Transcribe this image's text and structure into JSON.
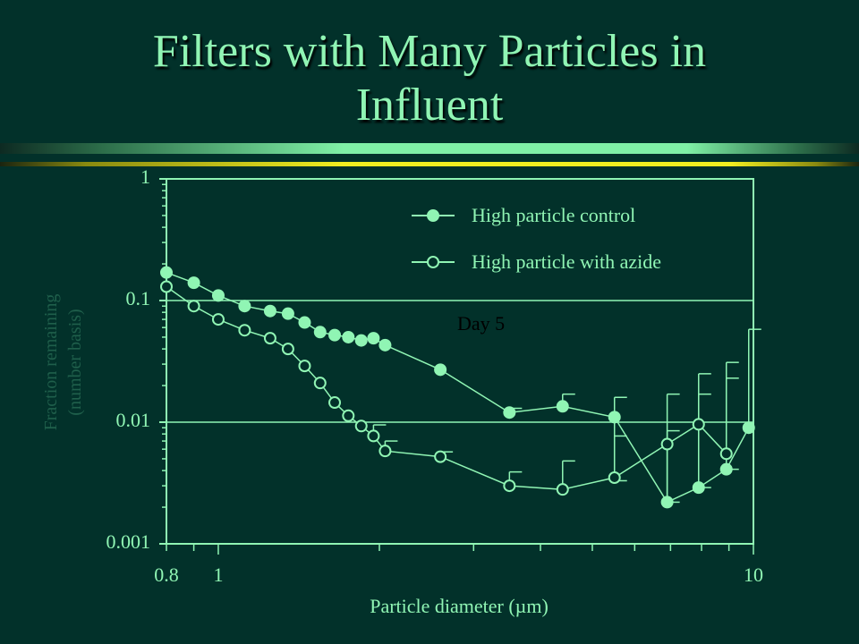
{
  "slide": {
    "title_line1": "Filters with Many Particles in",
    "title_line2": "Influent"
  },
  "colors": {
    "background": "#02312a",
    "accent": "#90f5b4",
    "title_rule_yellow": "#f2ee20"
  },
  "chart_data": {
    "type": "scatter",
    "title": "",
    "xlabel": "Particle diameter (µm)",
    "ylabel_line1": "Fraction remaining",
    "ylabel_line2": "(number basis)",
    "x_scale": "log",
    "y_scale": "log",
    "xlim": [
      0.8,
      10
    ],
    "ylim": [
      0.001,
      1
    ],
    "x_ticklabels": [
      "0.8",
      "1",
      "10"
    ],
    "y_ticklabels": [
      "1",
      "0.1",
      "0.01",
      "0.001"
    ],
    "gridlines_y": [
      0.1,
      0.01
    ],
    "legend_position": "top-right",
    "annotation": "Day 5",
    "series": [
      {
        "name": "High particle control",
        "marker": "filled-circle",
        "points": [
          {
            "x": 0.8,
            "y": 0.17
          },
          {
            "x": 0.9,
            "y": 0.14
          },
          {
            "x": 1.0,
            "y": 0.11
          },
          {
            "x": 1.12,
            "y": 0.09
          },
          {
            "x": 1.25,
            "y": 0.082
          },
          {
            "x": 1.35,
            "y": 0.078
          },
          {
            "x": 1.45,
            "y": 0.066
          },
          {
            "x": 1.55,
            "y": 0.055
          },
          {
            "x": 1.65,
            "y": 0.052
          },
          {
            "x": 1.75,
            "y": 0.05
          },
          {
            "x": 1.85,
            "y": 0.047
          },
          {
            "x": 1.95,
            "y": 0.049
          },
          {
            "x": 2.05,
            "y": 0.043
          },
          {
            "x": 2.6,
            "y": 0.027
          },
          {
            "x": 3.5,
            "y": 0.012,
            "err_up": 0.013
          },
          {
            "x": 4.4,
            "y": 0.0135,
            "err_up": 0.017
          },
          {
            "x": 5.5,
            "y": 0.011,
            "err_up": 0.016,
            "err_down": 0.0033
          },
          {
            "x": 6.9,
            "y": 0.0022,
            "err_up": 0.0085
          },
          {
            "x": 7.9,
            "y": 0.0029,
            "err_up": 0.017
          },
          {
            "x": 8.9,
            "y": 0.0041,
            "err_up": 0.023
          },
          {
            "x": 9.8,
            "y": 0.009,
            "err_up": 0.058
          }
        ]
      },
      {
        "name": "High particle with azide",
        "marker": "open-circle",
        "points": [
          {
            "x": 0.8,
            "y": 0.13
          },
          {
            "x": 0.9,
            "y": 0.09
          },
          {
            "x": 1.0,
            "y": 0.07
          },
          {
            "x": 1.12,
            "y": 0.057
          },
          {
            "x": 1.25,
            "y": 0.049
          },
          {
            "x": 1.35,
            "y": 0.04
          },
          {
            "x": 1.45,
            "y": 0.029
          },
          {
            "x": 1.55,
            "y": 0.021
          },
          {
            "x": 1.65,
            "y": 0.0145
          },
          {
            "x": 1.75,
            "y": 0.0113
          },
          {
            "x": 1.85,
            "y": 0.0093
          },
          {
            "x": 1.95,
            "y": 0.0077,
            "err_up": 0.0095
          },
          {
            "x": 2.05,
            "y": 0.0058,
            "err_up": 0.007
          },
          {
            "x": 2.6,
            "y": 0.0052,
            "err_up": 0.0057
          },
          {
            "x": 3.5,
            "y": 0.003,
            "err_up": 0.0039
          },
          {
            "x": 4.4,
            "y": 0.0028,
            "err_up": 0.0048
          },
          {
            "x": 5.5,
            "y": 0.0035,
            "err_up": 0.0077
          },
          {
            "x": 6.9,
            "y": 0.0066,
            "err_up": 0.017,
            "err_down": 0.0022
          },
          {
            "x": 7.9,
            "y": 0.0096,
            "err_up": 0.025,
            "err_down": 0.0029
          },
          {
            "x": 8.9,
            "y": 0.0055,
            "err_up": 0.031,
            "err_down": 0.0041
          }
        ]
      }
    ]
  }
}
